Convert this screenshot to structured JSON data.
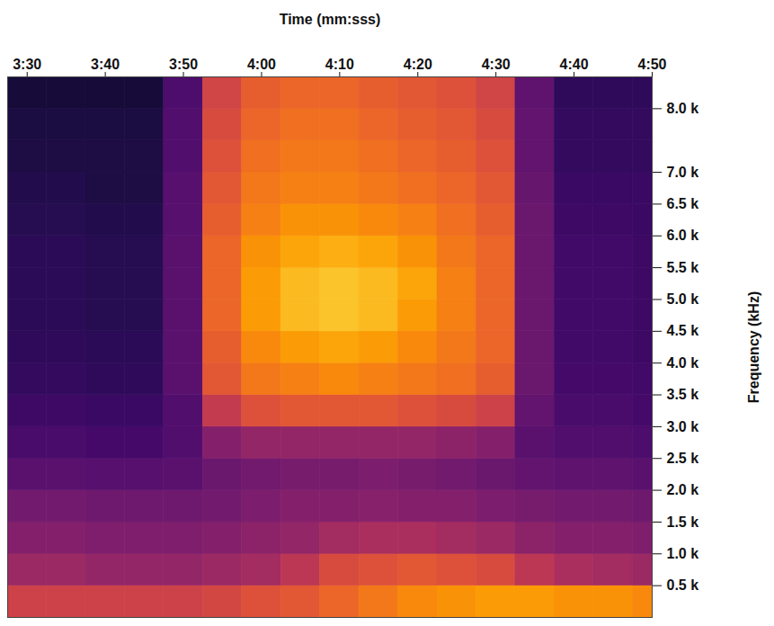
{
  "chart_data": {
    "type": "heatmap",
    "xlabel": "Time (mm:sss)",
    "ylabel": "Frequency (kHz)",
    "xlim": [
      207.5,
      290
    ],
    "xticks": [
      {
        "value": 210,
        "label": "3:30"
      },
      {
        "value": 220,
        "label": "3:40"
      },
      {
        "value": 230,
        "label": "3:50"
      },
      {
        "value": 240,
        "label": "4:00"
      },
      {
        "value": 250,
        "label": "4:10"
      },
      {
        "value": 260,
        "label": "4:20"
      },
      {
        "value": 270,
        "label": "4:30"
      },
      {
        "value": 280,
        "label": "4:40"
      },
      {
        "value": 290,
        "label": "4:50"
      }
    ],
    "ylim": [
      0,
      8.5
    ],
    "yticks": [
      {
        "value": 0.5,
        "label": "0.5 k"
      },
      {
        "value": 1.0,
        "label": "1.0 k"
      },
      {
        "value": 1.5,
        "label": "1.5 k"
      },
      {
        "value": 2.0,
        "label": "2.0 k"
      },
      {
        "value": 2.5,
        "label": "2.5 k"
      },
      {
        "value": 3.0,
        "label": "3.0 k"
      },
      {
        "value": 3.5,
        "label": "3.5 k"
      },
      {
        "value": 4.0,
        "label": "4.0 k"
      },
      {
        "value": 4.5,
        "label": "4.5 k"
      },
      {
        "value": 5.0,
        "label": "5.0 k"
      },
      {
        "value": 5.5,
        "label": "5.5 k"
      },
      {
        "value": 6.0,
        "label": "6.0 k"
      },
      {
        "value": 6.5,
        "label": "6.5 k"
      },
      {
        "value": 7.0,
        "label": "7.0 k"
      },
      {
        "value": 8.0,
        "label": "8.0 k"
      }
    ],
    "color": "inferno",
    "zlim": [
      0,
      100
    ],
    "time": [
      210,
      215,
      220,
      225,
      230,
      235,
      240,
      245,
      250,
      255,
      260,
      265,
      270,
      275,
      280,
      285,
      290
    ],
    "frequency": [
      0.25,
      0.75,
      1.25,
      1.75,
      2.25,
      2.75,
      3.25,
      3.75,
      4.25,
      4.75,
      5.25,
      5.75,
      6.25,
      6.75,
      7.25,
      7.75,
      8.25
    ],
    "cells": [
      [
        55,
        55,
        55,
        55,
        55,
        57,
        60,
        62,
        66,
        70,
        74,
        76,
        78,
        78,
        76,
        76,
        74
      ],
      [
        42,
        42,
        40,
        40,
        40,
        42,
        44,
        50,
        58,
        60,
        62,
        60,
        58,
        50,
        46,
        44,
        42
      ],
      [
        36,
        36,
        35,
        35,
        35,
        36,
        38,
        40,
        44,
        46,
        46,
        44,
        42,
        38,
        36,
        36,
        35
      ],
      [
        32,
        32,
        31,
        31,
        31,
        32,
        34,
        36,
        36,
        37,
        36,
        36,
        34,
        33,
        32,
        32,
        31
      ],
      [
        26,
        26,
        25,
        25,
        26,
        30,
        32,
        33,
        33,
        34,
        33,
        32,
        30,
        28,
        27,
        27,
        26
      ],
      [
        22,
        22,
        21,
        21,
        24,
        36,
        40,
        40,
        40,
        40,
        40,
        38,
        36,
        26,
        24,
        24,
        23
      ],
      [
        19,
        19,
        18,
        18,
        24,
        52,
        60,
        62,
        62,
        62,
        60,
        58,
        55,
        28,
        22,
        22,
        21
      ],
      [
        17,
        17,
        16,
        16,
        26,
        62,
        70,
        72,
        74,
        72,
        70,
        68,
        64,
        30,
        21,
        21,
        20
      ],
      [
        16,
        16,
        15,
        15,
        26,
        64,
        74,
        78,
        80,
        78,
        74,
        70,
        66,
        30,
        20,
        20,
        19
      ],
      [
        15,
        15,
        14,
        14,
        26,
        66,
        78,
        84,
        86,
        84,
        78,
        72,
        66,
        30,
        20,
        20,
        19
      ],
      [
        15,
        15,
        14,
        14,
        26,
        66,
        78,
        84,
        86,
        84,
        80,
        72,
        66,
        30,
        20,
        20,
        19
      ],
      [
        15,
        15,
        14,
        14,
        26,
        66,
        76,
        80,
        82,
        80,
        76,
        70,
        66,
        30,
        20,
        20,
        19
      ],
      [
        14,
        14,
        13,
        13,
        25,
        64,
        72,
        76,
        76,
        74,
        72,
        68,
        64,
        30,
        19,
        19,
        18
      ],
      [
        13,
        13,
        12,
        12,
        25,
        62,
        70,
        72,
        72,
        70,
        68,
        66,
        62,
        29,
        18,
        18,
        18
      ],
      [
        12,
        12,
        12,
        12,
        24,
        60,
        68,
        70,
        70,
        68,
        66,
        64,
        60,
        28,
        17,
        17,
        17
      ],
      [
        11,
        11,
        11,
        11,
        24,
        58,
        66,
        68,
        68,
        66,
        64,
        62,
        58,
        28,
        17,
        17,
        17
      ],
      [
        10,
        10,
        10,
        10,
        23,
        56,
        64,
        66,
        66,
        64,
        62,
        60,
        56,
        27,
        16,
        16,
        16
      ]
    ]
  }
}
